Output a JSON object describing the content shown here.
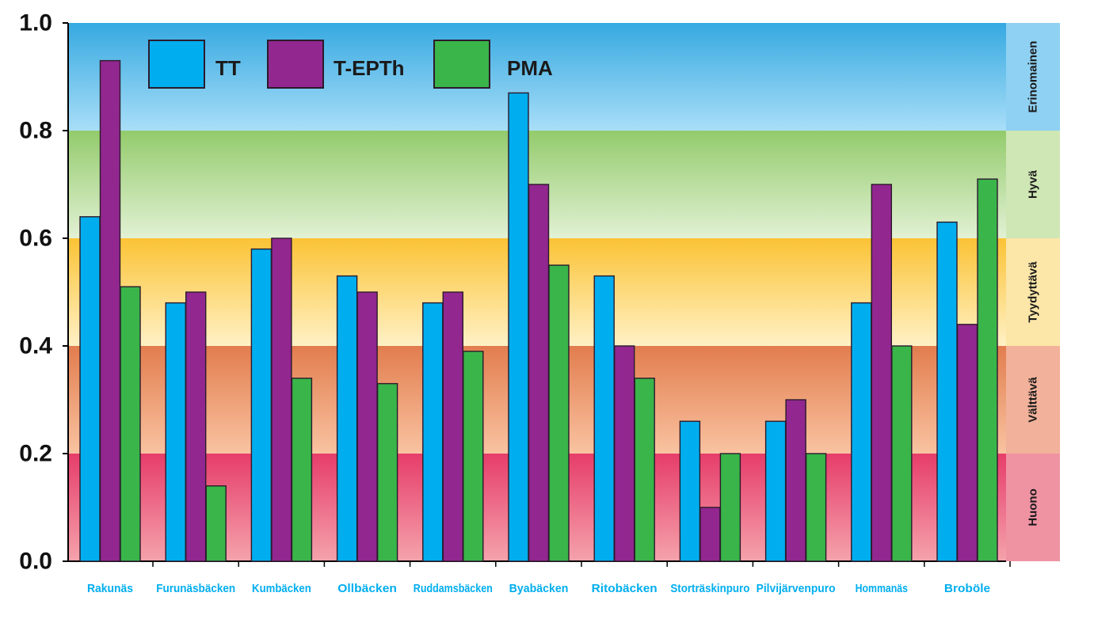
{
  "chart_data": {
    "type": "bar",
    "categories": [
      "Rakunäs",
      "Furunäsbäcken",
      "Kumbäcken",
      "Ollbäcken",
      "Ruddamsbäcken",
      "Byabäcken",
      "Ritobäcken",
      "Storträskinpuro",
      "Pilvijärvenpuro",
      "Hommanäs",
      "Broböle"
    ],
    "series": [
      {
        "name": "TT",
        "color": "#00aeef",
        "values": [
          0.64,
          0.48,
          0.58,
          0.53,
          0.48,
          0.87,
          0.53,
          0.26,
          0.26,
          0.48,
          0.63
        ]
      },
      {
        "name": "T-EPTh",
        "color": "#92278f",
        "values": [
          0.93,
          0.5,
          0.6,
          0.5,
          0.5,
          0.7,
          0.4,
          0.1,
          0.3,
          0.7,
          0.44
        ]
      },
      {
        "name": "PMA",
        "color": "#39b54a",
        "values": [
          0.51,
          0.14,
          0.34,
          0.33,
          0.39,
          0.55,
          0.34,
          0.2,
          0.2,
          0.4,
          0.71
        ]
      }
    ],
    "ylim": [
      0,
      1.0
    ],
    "yticks": [
      "0.0",
      "0.2",
      "0.4",
      "0.6",
      "0.8",
      "1.0"
    ],
    "title": "",
    "xlabel": "",
    "ylabel": "",
    "legend_position": "top-left",
    "category_label_color": "#00aeef",
    "quality_bands": [
      {
        "label": "Huono",
        "from": 0.0,
        "to": 0.2,
        "color_top": "#e63d6a",
        "color_bottom": "#f5a3ac",
        "side_color": "#ef93a3"
      },
      {
        "label": "Välttävä",
        "from": 0.2,
        "to": 0.4,
        "color_top": "#e27d4e",
        "color_bottom": "#f9c3a1",
        "side_color": "#f2b19a"
      },
      {
        "label": "Tyydyttävä",
        "from": 0.4,
        "to": 0.6,
        "color_top": "#fbc335",
        "color_bottom": "#fff1c6",
        "side_color": "#fce6a8"
      },
      {
        "label": "Hyvä",
        "from": 0.6,
        "to": 0.8,
        "color_top": "#93cb6c",
        "color_bottom": "#e2f1d4",
        "side_color": "#cfe6b5"
      },
      {
        "label": "Erinomainen",
        "from": 0.8,
        "to": 1.0,
        "color_top": "#36a9e1",
        "color_bottom": "#a9def8",
        "side_color": "#8fd1f2"
      }
    ]
  }
}
